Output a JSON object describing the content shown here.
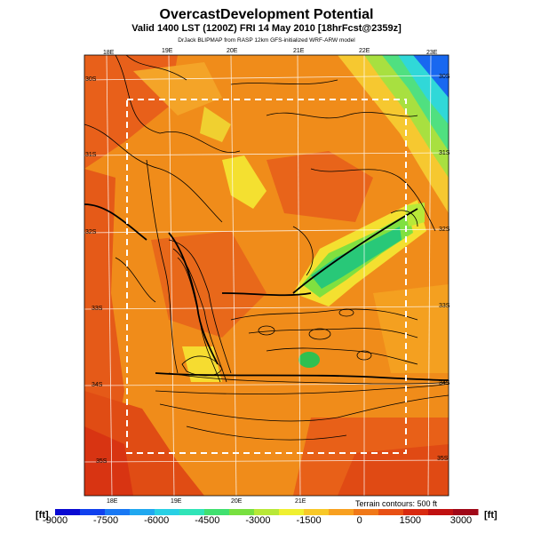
{
  "header": {
    "title": "OvercastDevelopment Potential",
    "subtitle": "Valid 1400 LST (1200Z) FRI 14 May 2010 [18hrFcst@2359z]",
    "credit": "DrJack BLIPMAP from RASP 12km GFS-initialized WRF-ARW model"
  },
  "map": {
    "lon_labels_top": [
      "18E",
      "19E",
      "20E",
      "21E",
      "22E",
      "23E"
    ],
    "lon_labels_bottom": [
      "18E",
      "19E",
      "20E",
      "21E"
    ],
    "lat_labels_right": [
      "30S",
      "31S",
      "32S",
      "33S",
      "34S",
      "35S"
    ],
    "lat_labels_left": [
      "30S",
      "31S",
      "32S",
      "33S",
      "34S",
      "35S"
    ],
    "terrain_note": "Terrain contours: 500 ft"
  },
  "colorbar": {
    "unit_left": "[ft]",
    "unit_right": "[ft]",
    "ticks": [
      "-9000",
      "-7500",
      "-6000",
      "-4500",
      "-3000",
      "-1500",
      "0",
      "1500",
      "3000"
    ],
    "range": [
      -9000,
      3500
    ],
    "colors": [
      "#0a0ad2",
      "#1040ee",
      "#1878f4",
      "#20a8f0",
      "#28d0e4",
      "#30e4b8",
      "#40e070",
      "#78e040",
      "#b8e838",
      "#f0f030",
      "#f8c828",
      "#f8a020",
      "#f07818",
      "#e85014",
      "#d82a10",
      "#c01010",
      "#a00818"
    ]
  }
}
